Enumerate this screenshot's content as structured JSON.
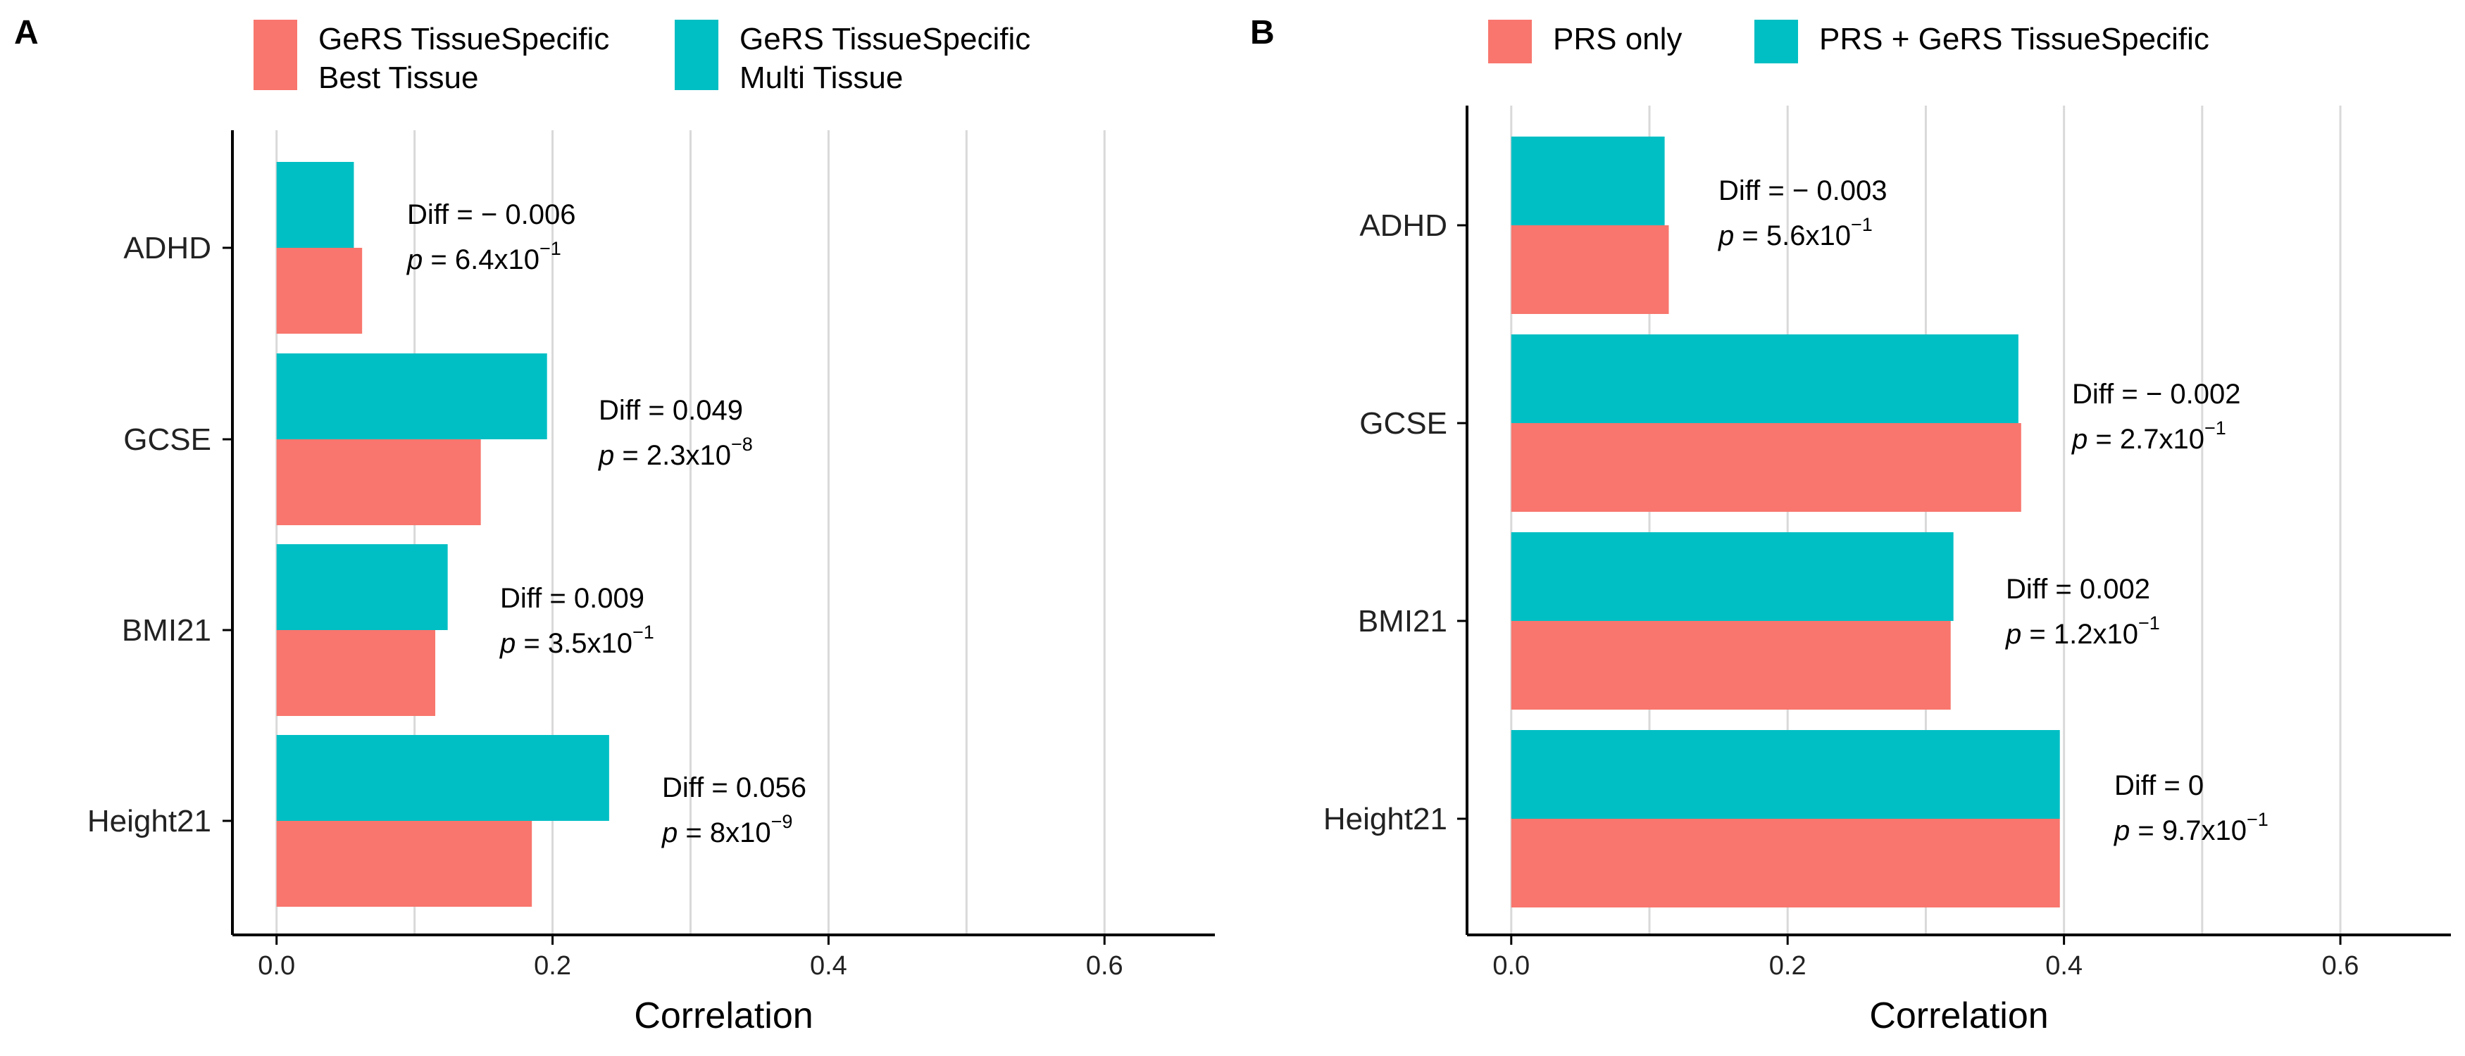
{
  "colors": {
    "red": "#F8766D",
    "teal": "#00BFC4",
    "grid": "#d9d9d9",
    "axis": "#000000"
  },
  "panels": [
    {
      "tag": "A",
      "legend": [
        {
          "lines": [
            "GeRS TissueSpecific",
            "Best Tissue"
          ],
          "color": "#F8766D"
        },
        {
          "lines": [
            "GeRS TissueSpecific",
            "Multi Tissue"
          ],
          "color": "#00BFC4"
        }
      ],
      "annotations": [
        {
          "diff": "Diff = − 0.006",
          "p_prefix": "p",
          "p_mid": " = 6.4x10",
          "p_exp": "−1"
        },
        {
          "diff": "Diff = 0.049",
          "p_prefix": "p",
          "p_mid": " = 2.3x10",
          "p_exp": "−8"
        },
        {
          "diff": "Diff = 0.009",
          "p_prefix": "p",
          "p_mid": " = 3.5x10",
          "p_exp": "−1"
        },
        {
          "diff": "Diff = 0.056",
          "p_prefix": "p",
          "p_mid": " = 8x10",
          "p_exp": "−9"
        }
      ]
    },
    {
      "tag": "B",
      "legend": [
        {
          "lines": [
            "PRS only"
          ],
          "color": "#F8766D"
        },
        {
          "lines": [
            "PRS + GeRS TissueSpecific"
          ],
          "color": "#00BFC4"
        }
      ],
      "annotations": [
        {
          "diff": "Diff = − 0.003",
          "p_prefix": "p",
          "p_mid": " = 5.6x10",
          "p_exp": "−1"
        },
        {
          "diff": "Diff = − 0.002",
          "p_prefix": "p",
          "p_mid": " = 2.7x10",
          "p_exp": "−1"
        },
        {
          "diff": "Diff = 0.002",
          "p_prefix": "p",
          "p_mid": " = 1.2x10",
          "p_exp": "−1"
        },
        {
          "diff": "Diff = 0",
          "p_prefix": "p",
          "p_mid": " = 9.7x10",
          "p_exp": "−1"
        }
      ]
    }
  ],
  "chart_data": [
    {
      "type": "bar",
      "orientation": "horizontal",
      "categories": [
        "ADHD",
        "GCSE",
        "BMI21",
        "Height21"
      ],
      "series": [
        {
          "name": "GeRS TissueSpecific Best Tissue",
          "values": [
            0.062,
            0.148,
            0.115,
            0.185
          ]
        },
        {
          "name": "GeRS TissueSpecific Multi Tissue",
          "values": [
            0.056,
            0.196,
            0.124,
            0.241
          ]
        }
      ],
      "xlabel": "Correlation",
      "xlim": [
        -0.032,
        0.68
      ],
      "xticks": [
        "0.0",
        "0.2",
        "0.4",
        "0.6"
      ],
      "xtick_values": [
        0,
        0.2,
        0.4,
        0.6
      ],
      "grid": true,
      "legend_position": "top"
    },
    {
      "type": "bar",
      "orientation": "horizontal",
      "categories": [
        "ADHD",
        "GCSE",
        "BMI21",
        "Height21"
      ],
      "series": [
        {
          "name": "PRS only",
          "values": [
            0.114,
            0.369,
            0.318,
            0.397
          ]
        },
        {
          "name": "PRS + GeRS TissueSpecific",
          "values": [
            0.111,
            0.367,
            0.32,
            0.397
          ]
        }
      ],
      "xlabel": "Correlation",
      "xlim": [
        -0.032,
        0.68
      ],
      "xticks": [
        "0.0",
        "0.2",
        "0.4",
        "0.6"
      ],
      "xtick_values": [
        0,
        0.2,
        0.4,
        0.6
      ],
      "grid": true,
      "legend_position": "top"
    }
  ]
}
